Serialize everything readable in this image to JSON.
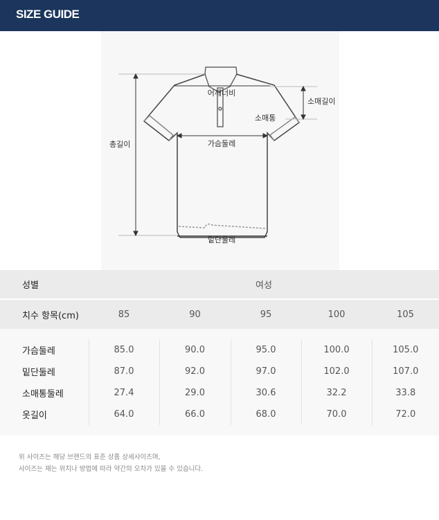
{
  "header": {
    "title": "SIZE GUIDE"
  },
  "diagram": {
    "labels": {
      "shoulder": "어깨너비",
      "sleeve_length": "소매길이",
      "sleeve_width": "소매통",
      "chest": "가슴둘레",
      "total_length": "총길이",
      "hem": "밑단둘레"
    }
  },
  "table": {
    "gender_label": "성별",
    "gender_value": "여성",
    "size_label": "치수 항목(cm)",
    "sizes": [
      "85",
      "90",
      "95",
      "100",
      "105"
    ],
    "rows": [
      {
        "label": "가슴둘레",
        "values": [
          "85.0",
          "90.0",
          "95.0",
          "100.0",
          "105.0"
        ]
      },
      {
        "label": "밑단둘레",
        "values": [
          "87.0",
          "92.0",
          "97.0",
          "102.0",
          "107.0"
        ]
      },
      {
        "label": "소매통둘레",
        "values": [
          "27.4",
          "29.0",
          "30.6",
          "32.2",
          "33.8"
        ]
      },
      {
        "label": "옷길이",
        "values": [
          "64.0",
          "66.0",
          "68.0",
          "70.0",
          "72.0"
        ]
      }
    ]
  },
  "notes": [
    "위 사이즈는 해당 브랜드의 표준 상품 상세사이즈며,",
    "사이즈는 재는 위치나 방법에 따라 약간의 오차가 있을 수 있습니다."
  ],
  "colors": {
    "header_bg": "#1b355c",
    "table_head_bg": "#ebebeb",
    "table_body_bg": "#f8f8f8"
  }
}
